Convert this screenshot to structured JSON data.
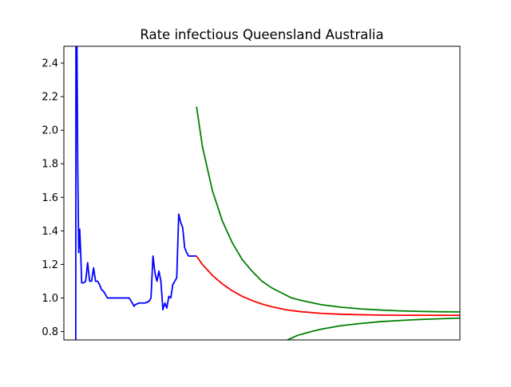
{
  "chart_data": {
    "type": "line",
    "title": "Rate infectious Queensland Australia",
    "xlabel": "",
    "ylabel": "",
    "xlim": [
      0,
      200
    ],
    "ylim": [
      0.75,
      2.5
    ],
    "x_ticks_shown": false,
    "y_ticks": [
      0.8,
      1.0,
      1.2,
      1.4,
      1.6,
      1.8,
      2.0,
      2.2,
      2.4
    ],
    "y_tick_labels": [
      "0.8",
      "1.0",
      "1.2",
      "1.4",
      "1.6",
      "1.8",
      "2.0",
      "2.2",
      "2.4"
    ],
    "grid": false,
    "legend": false,
    "series": [
      {
        "color": "#0000ff",
        "x": [
          6,
          6.1,
          6.6,
          7.0,
          7.5,
          8.0,
          8.5,
          9.0,
          10.0,
          11.0,
          12.0,
          13.0,
          14.0,
          15.0,
          16.0,
          17.0,
          18.0,
          19.0,
          20.0,
          21.0,
          22.0,
          23.0,
          24.0,
          25.0,
          27.0,
          30.0,
          33.0,
          35.0,
          35.5,
          36.0,
          38.0,
          41.0,
          43.0,
          44.0,
          45.0,
          46.0,
          47.0,
          48.0,
          49.0,
          50.0,
          51.0,
          52.0,
          53.0,
          54.0,
          55.0,
          56.0,
          57.0,
          58.0,
          59.0,
          60.0,
          61.0,
          62.0,
          63.0,
          64.0,
          65.0,
          66.0,
          67.0
        ],
        "y": [
          0.75,
          2.5,
          2.5,
          1.8,
          1.27,
          1.41,
          1.27,
          1.09,
          1.09,
          1.1,
          1.21,
          1.1,
          1.1,
          1.18,
          1.1,
          1.1,
          1.08,
          1.05,
          1.04,
          1.02,
          1.0,
          1.0,
          1.0,
          1.0,
          1.0,
          1.0,
          1.0,
          0.96,
          0.95,
          0.96,
          0.97,
          0.97,
          0.98,
          1.0,
          1.25,
          1.15,
          1.1,
          1.16,
          1.1,
          0.93,
          0.97,
          0.94,
          1.01,
          1.0,
          1.08,
          1.1,
          1.12,
          1.5,
          1.45,
          1.42,
          1.3,
          1.27,
          1.25,
          1.25,
          1.25,
          1.25,
          1.25
        ]
      },
      {
        "color": "#ff0000",
        "x": [
          67,
          70,
          75,
          80,
          85,
          90,
          95,
          100,
          105,
          110,
          115,
          120,
          130,
          140,
          150,
          160,
          170,
          180,
          190,
          200
        ],
        "y": [
          1.25,
          1.199,
          1.135,
          1.084,
          1.043,
          1.01,
          0.985,
          0.964,
          0.948,
          0.935,
          0.925,
          0.918,
          0.908,
          0.903,
          0.9,
          0.898,
          0.897,
          0.897,
          0.897,
          0.897
        ]
      },
      {
        "color": "#008000",
        "x": [
          67,
          70,
          75,
          80,
          85,
          90,
          95,
          100,
          105,
          110,
          115,
          120,
          130,
          140,
          150,
          160,
          170,
          180,
          190,
          200
        ],
        "y": [
          2.14,
          1.9,
          1.64,
          1.46,
          1.33,
          1.23,
          1.16,
          1.1,
          1.06,
          1.03,
          1.0,
          0.985,
          0.96,
          0.945,
          0.935,
          0.928,
          0.923,
          0.92,
          0.918,
          0.917
        ]
      },
      {
        "color": "#008000",
        "x": [
          113,
          118,
          125,
          130,
          140,
          150,
          160,
          170,
          180,
          190,
          200
        ],
        "y": [
          0.75,
          0.777,
          0.8,
          0.814,
          0.835,
          0.848,
          0.859,
          0.866,
          0.872,
          0.876,
          0.88
        ]
      }
    ]
  }
}
